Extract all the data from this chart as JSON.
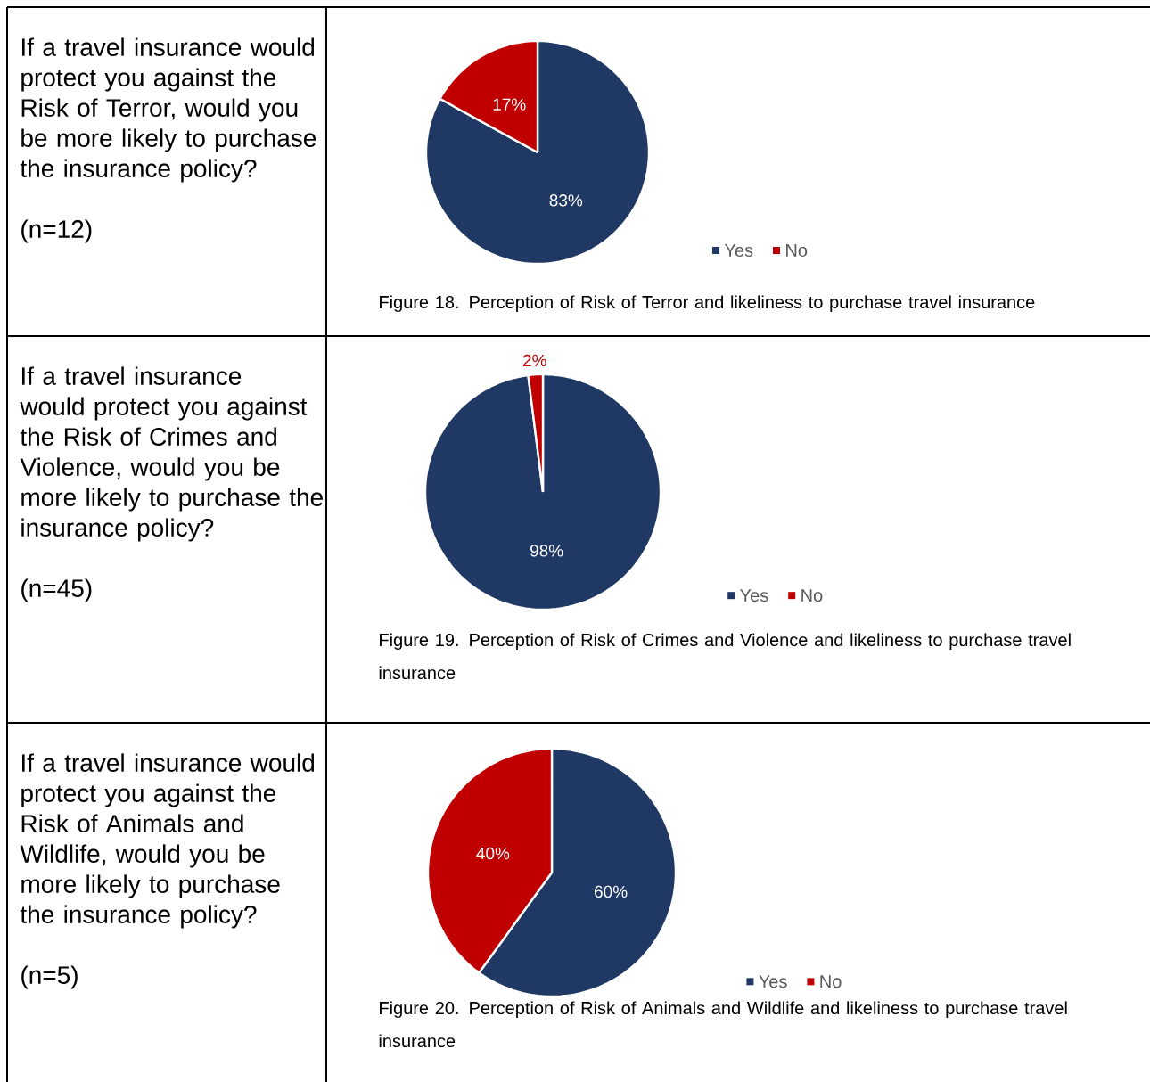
{
  "chart_data": [
    {
      "type": "pie",
      "title": "If a travel insurance would protect you against the Risk of Terror, would you be more likely to purchase the insurance policy?",
      "categories": [
        "Yes",
        "No"
      ],
      "values": [
        83,
        17
      ],
      "colors": [
        "#203864",
        "#c00000"
      ],
      "value_labels": [
        "83%",
        "17%"
      ],
      "legend": "bottom right",
      "annotations": [
        "(n=12)",
        "Figure 18. Perception of Risk of Terror and likeliness to purchase travel insurance"
      ]
    },
    {
      "type": "pie",
      "title": "If a travel insurance would protect you against the Risk of Crimes and Violence, would you be more likely to purchase the insurance policy?",
      "categories": [
        "Yes",
        "No"
      ],
      "values": [
        98,
        2
      ],
      "colors": [
        "#203864",
        "#c00000"
      ],
      "value_labels": [
        "98%",
        "2%"
      ],
      "legend": "bottom right",
      "annotations": [
        "(n=45)",
        "Figure 19. Perception of Risk of Crimes and Violence and likeliness to purchase travel insurance"
      ]
    },
    {
      "type": "pie",
      "title": "If a travel insurance would protect you against the Risk of Animals and Wildlife, would you be more likely to purchase the insurance policy?",
      "categories": [
        "Yes",
        "No"
      ],
      "values": [
        60,
        40
      ],
      "colors": [
        "#203864",
        "#c00000"
      ],
      "value_labels": [
        "60%",
        "40%"
      ],
      "legend": "bottom right",
      "annotations": [
        "(n=5)",
        "Figure 20. Perception of Risk of Animals and Wildlife and likeliness to purchase travel insurance"
      ]
    }
  ]
}
